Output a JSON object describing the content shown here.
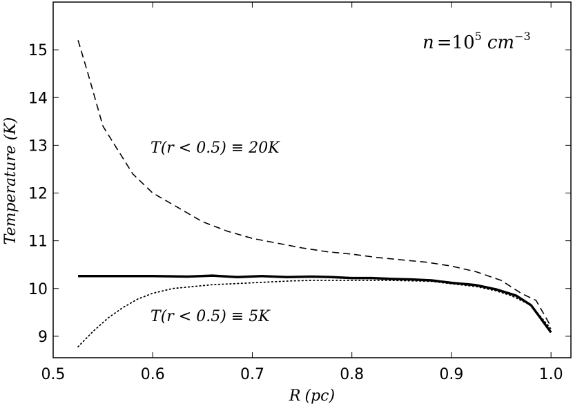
{
  "chart_data": {
    "type": "line",
    "xlabel_var": "R",
    "xlabel_unit": "(pc)",
    "ylabel": "Temperature (K)",
    "xlim": [
      0.5,
      1.02
    ],
    "ylim": [
      8.55,
      16.0
    ],
    "xticks": [
      0.5,
      0.6,
      0.7,
      0.8,
      0.9,
      1.0
    ],
    "xtick_labels": [
      "0.5",
      "0.6",
      "0.7",
      "0.8",
      "0.9",
      "1.0"
    ],
    "yticks": [
      9,
      10,
      11,
      12,
      13,
      14,
      15
    ],
    "ytick_labels": [
      "9",
      "10",
      "11",
      "12",
      "13",
      "14",
      "15"
    ],
    "grid": false,
    "annotations": {
      "density": {
        "n": "n",
        "eq": "=10",
        "exp": "5",
        "unit": "cm",
        "unit_exp": "−3"
      },
      "upper": {
        "T": "T",
        "cond": "(r < 0.5) ≡ 20K"
      },
      "lower": {
        "T": "T",
        "cond": "(r < 0.5) ≡ 5K"
      }
    },
    "series": [
      {
        "style": "dashed",
        "x": [
          0.525,
          0.535,
          0.55,
          0.565,
          0.58,
          0.6,
          0.625,
          0.65,
          0.675,
          0.7,
          0.725,
          0.75,
          0.775,
          0.8,
          0.825,
          0.85,
          0.875,
          0.9,
          0.925,
          0.95,
          0.97,
          0.985,
          1.0
        ],
        "y": [
          15.2,
          14.5,
          13.4,
          12.9,
          12.4,
          12.0,
          11.7,
          11.4,
          11.2,
          11.05,
          10.95,
          10.85,
          10.77,
          10.72,
          10.65,
          10.6,
          10.55,
          10.47,
          10.35,
          10.17,
          9.9,
          9.75,
          9.2
        ]
      },
      {
        "style": "solid",
        "x": [
          0.525,
          0.55,
          0.575,
          0.6,
          0.635,
          0.66,
          0.685,
          0.71,
          0.735,
          0.76,
          0.78,
          0.8,
          0.82,
          0.84,
          0.86,
          0.88,
          0.9,
          0.925,
          0.945,
          0.965,
          0.98,
          1.0
        ],
        "y": [
          10.26,
          10.26,
          10.26,
          10.26,
          10.25,
          10.27,
          10.24,
          10.26,
          10.24,
          10.25,
          10.24,
          10.22,
          10.22,
          10.2,
          10.19,
          10.17,
          10.12,
          10.07,
          9.98,
          9.85,
          9.65,
          9.08
        ]
      },
      {
        "style": "dotted",
        "x": [
          0.525,
          0.54,
          0.555,
          0.57,
          0.585,
          0.6,
          0.62,
          0.64,
          0.66,
          0.68,
          0.7,
          0.72,
          0.74,
          0.76,
          0.78,
          0.8,
          0.82,
          0.84,
          0.86,
          0.88,
          0.9,
          0.925,
          0.945,
          0.96,
          0.98,
          1.0
        ],
        "y": [
          8.78,
          9.1,
          9.38,
          9.6,
          9.78,
          9.9,
          10.0,
          10.04,
          10.08,
          10.1,
          10.12,
          10.14,
          10.16,
          10.17,
          10.17,
          10.17,
          10.17,
          10.17,
          10.16,
          10.15,
          10.1,
          10.04,
          9.95,
          9.85,
          9.65,
          9.15
        ]
      }
    ]
  }
}
